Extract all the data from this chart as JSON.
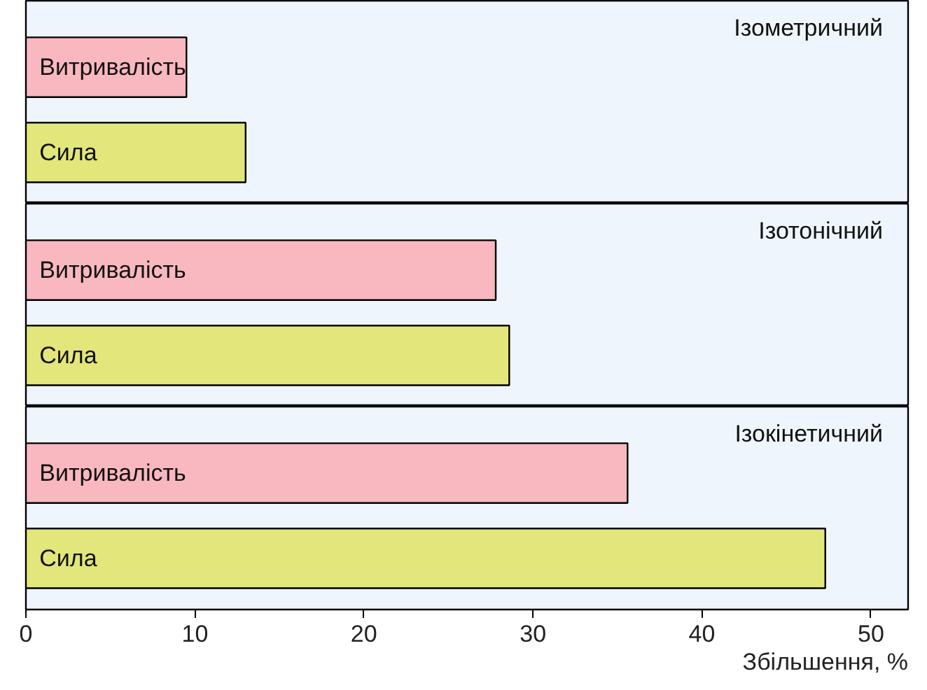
{
  "chart_data": [
    {
      "type": "bar",
      "orientation": "horizontal",
      "title": "Ізометричний",
      "categories": [
        "Витривалість",
        "Сила"
      ],
      "values": [
        9.5,
        13.0
      ],
      "colors": [
        "#f9b8c0",
        "#e3e67a"
      ],
      "xlim": [
        0,
        52.2
      ],
      "xticks": [
        0,
        10,
        20,
        30,
        40,
        50
      ],
      "tick_labels": false,
      "grid": false
    },
    {
      "type": "bar",
      "orientation": "horizontal",
      "title": "Ізотонічний",
      "categories": [
        "Витривалість",
        "Сила"
      ],
      "values": [
        27.8,
        28.6
      ],
      "colors": [
        "#f9b8c0",
        "#e3e67a"
      ],
      "xlim": [
        0,
        52.2
      ],
      "xticks": [
        0,
        10,
        20,
        30,
        40,
        50
      ],
      "tick_labels": false,
      "grid": false
    },
    {
      "type": "bar",
      "orientation": "horizontal",
      "title": "Ізокінетичний",
      "categories": [
        "Витривалість",
        "Сила"
      ],
      "values": [
        35.6,
        47.3
      ],
      "colors": [
        "#f9b8c0",
        "#e3e67a"
      ],
      "xlim": [
        0,
        52.2
      ],
      "xticks": [
        0,
        10,
        20,
        30,
        40,
        50
      ],
      "tick_labels": "x",
      "grid": false,
      "xlabel": "Збільшення, %"
    }
  ]
}
